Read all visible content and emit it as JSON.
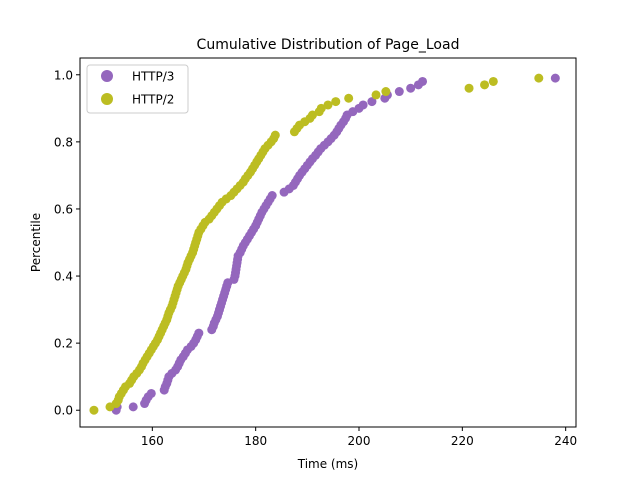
{
  "chart_data": {
    "type": "scatter",
    "title": "Cumulative Distribution of Page_Load",
    "xlabel": "Time (ms)",
    "ylabel": "Percentile",
    "xlim": [
      146,
      242
    ],
    "ylim": [
      -0.05,
      1.05
    ],
    "xticks": [
      160,
      180,
      200,
      220,
      240
    ],
    "yticks": [
      0.0,
      0.2,
      0.4,
      0.6,
      0.8,
      1.0
    ],
    "xtick_labels": [
      "160",
      "180",
      "200",
      "220",
      "240"
    ],
    "ytick_labels": [
      "0.0",
      "0.2",
      "0.4",
      "0.6",
      "0.8",
      "1.0"
    ],
    "legend_position": "top-left",
    "series": [
      {
        "name": "HTTP/3",
        "color": "#9467bd",
        "points": [
          [
            153.0,
            0.0
          ],
          [
            153.2,
            0.01
          ],
          [
            156.3,
            0.01
          ],
          [
            158.5,
            0.02
          ],
          [
            158.8,
            0.03
          ],
          [
            159.2,
            0.04
          ],
          [
            159.8,
            0.05
          ],
          [
            162.3,
            0.06
          ],
          [
            162.5,
            0.07
          ],
          [
            162.8,
            0.08
          ],
          [
            163.0,
            0.09
          ],
          [
            163.2,
            0.1
          ],
          [
            163.8,
            0.11
          ],
          [
            164.5,
            0.12
          ],
          [
            164.9,
            0.13
          ],
          [
            165.2,
            0.14
          ],
          [
            165.5,
            0.15
          ],
          [
            166.0,
            0.16
          ],
          [
            166.4,
            0.17
          ],
          [
            166.8,
            0.18
          ],
          [
            167.5,
            0.19
          ],
          [
            168.0,
            0.2
          ],
          [
            168.4,
            0.21
          ],
          [
            168.7,
            0.22
          ],
          [
            169.0,
            0.23
          ],
          [
            171.5,
            0.24
          ],
          [
            171.8,
            0.25
          ],
          [
            172.0,
            0.26
          ],
          [
            172.3,
            0.27
          ],
          [
            172.6,
            0.28
          ],
          [
            172.8,
            0.29
          ],
          [
            173.0,
            0.3
          ],
          [
            173.2,
            0.31
          ],
          [
            173.4,
            0.32
          ],
          [
            173.6,
            0.33
          ],
          [
            173.8,
            0.34
          ],
          [
            174.0,
            0.35
          ],
          [
            174.2,
            0.36
          ],
          [
            174.4,
            0.37
          ],
          [
            174.6,
            0.38
          ],
          [
            175.8,
            0.39
          ],
          [
            176.0,
            0.4
          ],
          [
            176.1,
            0.41
          ],
          [
            176.2,
            0.42
          ],
          [
            176.3,
            0.43
          ],
          [
            176.4,
            0.44
          ],
          [
            176.5,
            0.45
          ],
          [
            176.6,
            0.46
          ],
          [
            177.0,
            0.47
          ],
          [
            177.3,
            0.48
          ],
          [
            177.6,
            0.49
          ],
          [
            178.0,
            0.5
          ],
          [
            178.4,
            0.51
          ],
          [
            178.8,
            0.52
          ],
          [
            179.2,
            0.53
          ],
          [
            179.6,
            0.54
          ],
          [
            180.0,
            0.55
          ],
          [
            180.3,
            0.56
          ],
          [
            180.6,
            0.57
          ],
          [
            180.9,
            0.58
          ],
          [
            181.2,
            0.59
          ],
          [
            181.6,
            0.6
          ],
          [
            182.0,
            0.61
          ],
          [
            182.4,
            0.62
          ],
          [
            182.8,
            0.63
          ],
          [
            183.2,
            0.64
          ],
          [
            185.5,
            0.65
          ],
          [
            186.5,
            0.66
          ],
          [
            187.3,
            0.67
          ],
          [
            187.7,
            0.68
          ],
          [
            188.1,
            0.69
          ],
          [
            188.5,
            0.7
          ],
          [
            189.0,
            0.71
          ],
          [
            189.5,
            0.72
          ],
          [
            190.0,
            0.73
          ],
          [
            190.5,
            0.74
          ],
          [
            191.0,
            0.75
          ],
          [
            191.6,
            0.76
          ],
          [
            192.1,
            0.77
          ],
          [
            192.6,
            0.78
          ],
          [
            193.3,
            0.79
          ],
          [
            194.0,
            0.8
          ],
          [
            194.6,
            0.81
          ],
          [
            195.2,
            0.82
          ],
          [
            195.7,
            0.83
          ],
          [
            196.1,
            0.84
          ],
          [
            196.5,
            0.85
          ],
          [
            197.0,
            0.86
          ],
          [
            197.4,
            0.87
          ],
          [
            197.7,
            0.88
          ],
          [
            198.8,
            0.89
          ],
          [
            200.0,
            0.9
          ],
          [
            200.8,
            0.91
          ],
          [
            202.5,
            0.92
          ],
          [
            205.0,
            0.93
          ],
          [
            205.5,
            0.94
          ],
          [
            207.8,
            0.95
          ],
          [
            210.0,
            0.96
          ],
          [
            211.5,
            0.97
          ],
          [
            212.3,
            0.98
          ],
          [
            238.0,
            0.99
          ]
        ]
      },
      {
        "name": "HTTP/2",
        "color": "#bcbd22",
        "points": [
          [
            148.7,
            0.0
          ],
          [
            151.8,
            0.01
          ],
          [
            153.0,
            0.02
          ],
          [
            153.4,
            0.03
          ],
          [
            153.6,
            0.04
          ],
          [
            154.0,
            0.05
          ],
          [
            154.4,
            0.06
          ],
          [
            154.8,
            0.07
          ],
          [
            155.6,
            0.08
          ],
          [
            156.0,
            0.09
          ],
          [
            156.4,
            0.1
          ],
          [
            157.0,
            0.11
          ],
          [
            157.5,
            0.12
          ],
          [
            157.9,
            0.13
          ],
          [
            158.2,
            0.14
          ],
          [
            158.6,
            0.15
          ],
          [
            159.0,
            0.16
          ],
          [
            159.4,
            0.17
          ],
          [
            159.8,
            0.18
          ],
          [
            160.2,
            0.19
          ],
          [
            160.6,
            0.2
          ],
          [
            161.0,
            0.21
          ],
          [
            161.3,
            0.22
          ],
          [
            161.6,
            0.23
          ],
          [
            161.9,
            0.24
          ],
          [
            162.2,
            0.25
          ],
          [
            162.5,
            0.26
          ],
          [
            162.8,
            0.27
          ],
          [
            163.0,
            0.28
          ],
          [
            163.2,
            0.29
          ],
          [
            163.5,
            0.3
          ],
          [
            163.8,
            0.31
          ],
          [
            164.0,
            0.32
          ],
          [
            164.2,
            0.33
          ],
          [
            164.4,
            0.34
          ],
          [
            164.6,
            0.35
          ],
          [
            164.8,
            0.36
          ],
          [
            165.0,
            0.37
          ],
          [
            165.3,
            0.38
          ],
          [
            165.6,
            0.39
          ],
          [
            165.9,
            0.4
          ],
          [
            166.2,
            0.41
          ],
          [
            166.5,
            0.42
          ],
          [
            166.7,
            0.43
          ],
          [
            166.9,
            0.44
          ],
          [
            167.2,
            0.45
          ],
          [
            167.5,
            0.46
          ],
          [
            167.8,
            0.47
          ],
          [
            168.0,
            0.48
          ],
          [
            168.2,
            0.49
          ],
          [
            168.4,
            0.5
          ],
          [
            168.6,
            0.51
          ],
          [
            168.8,
            0.52
          ],
          [
            169.0,
            0.53
          ],
          [
            169.4,
            0.54
          ],
          [
            169.8,
            0.55
          ],
          [
            170.2,
            0.56
          ],
          [
            171.0,
            0.57
          ],
          [
            171.5,
            0.58
          ],
          [
            172.0,
            0.59
          ],
          [
            172.5,
            0.6
          ],
          [
            173.0,
            0.61
          ],
          [
            173.5,
            0.62
          ],
          [
            174.3,
            0.63
          ],
          [
            175.2,
            0.64
          ],
          [
            175.8,
            0.65
          ],
          [
            176.4,
            0.66
          ],
          [
            177.0,
            0.67
          ],
          [
            177.6,
            0.68
          ],
          [
            178.0,
            0.69
          ],
          [
            178.5,
            0.7
          ],
          [
            179.0,
            0.71
          ],
          [
            179.4,
            0.72
          ],
          [
            179.8,
            0.73
          ],
          [
            180.2,
            0.74
          ],
          [
            180.6,
            0.75
          ],
          [
            181.0,
            0.76
          ],
          [
            181.4,
            0.77
          ],
          [
            181.8,
            0.78
          ],
          [
            182.4,
            0.79
          ],
          [
            183.0,
            0.8
          ],
          [
            183.5,
            0.81
          ],
          [
            183.8,
            0.82
          ],
          [
            187.5,
            0.83
          ],
          [
            188.0,
            0.84
          ],
          [
            188.5,
            0.85
          ],
          [
            189.5,
            0.86
          ],
          [
            190.5,
            0.87
          ],
          [
            191.0,
            0.88
          ],
          [
            192.3,
            0.89
          ],
          [
            192.7,
            0.9
          ],
          [
            194.0,
            0.91
          ],
          [
            195.5,
            0.92
          ],
          [
            198.0,
            0.93
          ],
          [
            203.3,
            0.94
          ],
          [
            205.2,
            0.95
          ],
          [
            221.3,
            0.96
          ],
          [
            224.3,
            0.97
          ],
          [
            226.0,
            0.98
          ],
          [
            234.8,
            0.99
          ]
        ]
      }
    ]
  }
}
